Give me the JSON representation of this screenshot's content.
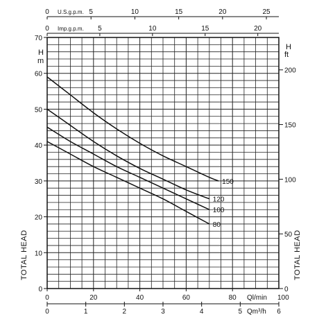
{
  "chart_data": {
    "type": "line",
    "title": "",
    "xlabel": "Ql/min",
    "ylabel_left": "TOTAL HEAD",
    "ylabel_right": "TOTAL HEAD",
    "y_unit_left": "H\nm",
    "y_unit_right": "H\nft",
    "xlim": [
      0,
      100
    ],
    "ylim": [
      0,
      70
    ],
    "grid": true,
    "x_ticks": [
      "0",
      "20",
      "40",
      "60",
      "80"
    ],
    "x_unit": "Ql/min",
    "x_end": "100",
    "y_ticks": [
      "0",
      "10",
      "20",
      "30",
      "40",
      "50",
      "60",
      "70"
    ],
    "right_ticks": [
      "0",
      "50",
      "100",
      "150",
      "200"
    ],
    "top_axes": [
      {
        "label": "U.S.g.p.m.",
        "ticks": [
          "0",
          "5",
          "10",
          "15",
          "20",
          "25"
        ]
      },
      {
        "label": "Imp.g.p.m.",
        "ticks": [
          "0",
          "5",
          "10",
          "15",
          "20"
        ]
      }
    ],
    "bottom_axis2": {
      "unit": "Qm³/h",
      "ticks": [
        "0",
        "1",
        "2",
        "3",
        "4",
        "5",
        "6"
      ]
    },
    "series": [
      {
        "name": "150",
        "x": [
          0,
          10,
          20,
          30,
          40,
          50,
          60,
          70,
          74
        ],
        "y": [
          59,
          54,
          49,
          44.5,
          40.5,
          37,
          34,
          31,
          30
        ]
      },
      {
        "name": "120",
        "x": [
          0,
          10,
          20,
          30,
          40,
          50,
          60,
          70
        ],
        "y": [
          50,
          45.5,
          41,
          37,
          33.5,
          30.5,
          27.5,
          25
        ]
      },
      {
        "name": "100",
        "x": [
          0,
          10,
          20,
          30,
          40,
          50,
          60,
          70
        ],
        "y": [
          45,
          41,
          37.5,
          34,
          31,
          28,
          25,
          22
        ]
      },
      {
        "name": "80",
        "x": [
          0,
          10,
          20,
          30,
          40,
          50,
          60,
          70
        ],
        "y": [
          41,
          37.5,
          34,
          31,
          28,
          25,
          21.5,
          18
        ]
      }
    ]
  }
}
